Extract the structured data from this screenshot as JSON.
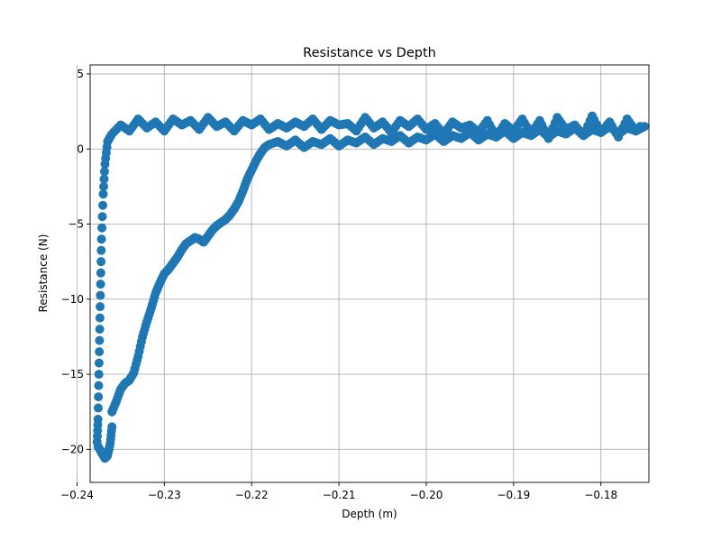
{
  "chart_data": {
    "type": "scatter",
    "title": "Resistance vs Depth",
    "xlabel": "Depth (m)",
    "ylabel": "Resistance (N)",
    "xlim": [
      -0.2385,
      -0.1745
    ],
    "ylim": [
      -22.2,
      5.6
    ],
    "xticks": [
      -0.24,
      -0.23,
      -0.22,
      -0.21,
      -0.2,
      -0.19,
      -0.18
    ],
    "xtick_labels": [
      "−0.24",
      "−0.23",
      "−0.22",
      "−0.21",
      "−0.20",
      "−0.19",
      "−0.18"
    ],
    "yticks": [
      -20,
      -15,
      -10,
      -5,
      0,
      5
    ],
    "ytick_labels": [
      "−20",
      "−15",
      "−10",
      "−5",
      "0",
      "5"
    ],
    "grid": true,
    "legend": "none",
    "marker_color": "#1f77b4",
    "series": [
      {
        "segments": [
          {
            "description_role": "approach",
            "points": [
              [
                -0.175,
                1.5
              ],
              [
                -0.176,
                1.2
              ],
              [
                -0.177,
                2.0
              ],
              [
                -0.178,
                0.8
              ],
              [
                -0.179,
                1.8
              ],
              [
                -0.18,
                1.1
              ],
              [
                -0.181,
                2.2
              ],
              [
                -0.182,
                0.9
              ],
              [
                -0.183,
                1.6
              ],
              [
                -0.184,
                1.3
              ],
              [
                -0.185,
                2.1
              ],
              [
                -0.186,
                0.7
              ],
              [
                -0.187,
                1.9
              ],
              [
                -0.188,
                1.0
              ],
              [
                -0.189,
                2.0
              ],
              [
                -0.19,
                1.2
              ],
              [
                -0.191,
                1.7
              ],
              [
                -0.192,
                0.8
              ],
              [
                -0.193,
                1.9
              ],
              [
                -0.194,
                1.1
              ],
              [
                -0.195,
                1.6
              ],
              [
                -0.196,
                1.4
              ],
              [
                -0.197,
                1.8
              ],
              [
                -0.198,
                1.0
              ],
              [
                -0.199,
                1.7
              ],
              [
                -0.2,
                1.3
              ],
              [
                -0.201,
                2.0
              ],
              [
                -0.202,
                1.5
              ],
              [
                -0.203,
                1.9
              ],
              [
                -0.204,
                1.1
              ],
              [
                -0.205,
                1.8
              ],
              [
                -0.206,
                1.4
              ],
              [
                -0.207,
                2.1
              ],
              [
                -0.208,
                1.2
              ],
              [
                -0.209,
                1.7
              ],
              [
                -0.21,
                1.6
              ],
              [
                -0.211,
                1.9
              ],
              [
                -0.212,
                1.3
              ],
              [
                -0.213,
                2.0
              ],
              [
                -0.214,
                1.5
              ],
              [
                -0.215,
                1.8
              ],
              [
                -0.216,
                1.4
              ],
              [
                -0.217,
                1.7
              ],
              [
                -0.218,
                1.3
              ],
              [
                -0.219,
                2.0
              ],
              [
                -0.22,
                1.6
              ],
              [
                -0.221,
                1.9
              ],
              [
                -0.222,
                1.2
              ],
              [
                -0.223,
                1.8
              ],
              [
                -0.224,
                1.5
              ],
              [
                -0.225,
                2.1
              ],
              [
                -0.226,
                1.3
              ],
              [
                -0.227,
                1.9
              ],
              [
                -0.228,
                1.6
              ],
              [
                -0.229,
                2.0
              ],
              [
                -0.23,
                1.2
              ],
              [
                -0.231,
                1.8
              ],
              [
                -0.232,
                1.4
              ],
              [
                -0.233,
                2.0
              ],
              [
                -0.234,
                1.2
              ],
              [
                -0.235,
                1.6
              ],
              [
                -0.236,
                1.0
              ],
              [
                -0.2365,
                0.5
              ],
              [
                -0.2368,
                -1.0
              ],
              [
                -0.237,
                -3.0
              ],
              [
                -0.2372,
                -6.0
              ],
              [
                -0.2373,
                -9.0
              ],
              [
                -0.2374,
                -12.0
              ],
              [
                -0.2375,
                -15.0
              ],
              [
                -0.2376,
                -18.0
              ],
              [
                -0.2377,
                -19.5
              ]
            ]
          },
          {
            "description_role": "bottom",
            "points": [
              [
                -0.2376,
                -19.8
              ],
              [
                -0.2372,
                -20.2
              ],
              [
                -0.2368,
                -20.6
              ],
              [
                -0.2365,
                -20.4
              ],
              [
                -0.2362,
                -19.6
              ],
              [
                -0.236,
                -18.5
              ]
            ]
          },
          {
            "description_role": "return",
            "points": [
              [
                -0.236,
                -17.5
              ],
              [
                -0.2355,
                -16.8
              ],
              [
                -0.235,
                -16.0
              ],
              [
                -0.2345,
                -15.6
              ],
              [
                -0.234,
                -15.4
              ],
              [
                -0.2335,
                -14.9
              ],
              [
                -0.233,
                -13.8
              ],
              [
                -0.2325,
                -12.5
              ],
              [
                -0.232,
                -11.5
              ],
              [
                -0.2315,
                -10.6
              ],
              [
                -0.231,
                -9.6
              ],
              [
                -0.2305,
                -8.9
              ],
              [
                -0.23,
                -8.3
              ],
              [
                -0.2295,
                -8.0
              ],
              [
                -0.229,
                -7.6
              ],
              [
                -0.2285,
                -7.2
              ],
              [
                -0.228,
                -6.7
              ],
              [
                -0.2275,
                -6.3
              ],
              [
                -0.227,
                -6.1
              ],
              [
                -0.2265,
                -5.9
              ],
              [
                -0.226,
                -6.0
              ],
              [
                -0.2255,
                -6.2
              ],
              [
                -0.225,
                -5.8
              ],
              [
                -0.2245,
                -5.4
              ],
              [
                -0.224,
                -5.1
              ],
              [
                -0.2235,
                -4.9
              ],
              [
                -0.223,
                -4.7
              ],
              [
                -0.2225,
                -4.4
              ],
              [
                -0.222,
                -4.0
              ],
              [
                -0.2215,
                -3.5
              ],
              [
                -0.221,
                -2.8
              ],
              [
                -0.2205,
                -2.0
              ],
              [
                -0.22,
                -1.4
              ],
              [
                -0.2195,
                -0.8
              ],
              [
                -0.219,
                -0.3
              ],
              [
                -0.2185,
                0.1
              ],
              [
                -0.218,
                0.3
              ],
              [
                -0.217,
                0.5
              ],
              [
                -0.216,
                0.2
              ],
              [
                -0.215,
                0.6
              ],
              [
                -0.214,
                0.1
              ],
              [
                -0.213,
                0.5
              ],
              [
                -0.212,
                0.3
              ],
              [
                -0.211,
                0.7
              ],
              [
                -0.21,
                0.2
              ],
              [
                -0.209,
                0.6
              ],
              [
                -0.208,
                0.4
              ],
              [
                -0.207,
                0.8
              ],
              [
                -0.206,
                0.3
              ],
              [
                -0.205,
                0.7
              ],
              [
                -0.204,
                0.5
              ],
              [
                -0.203,
                0.9
              ],
              [
                -0.202,
                0.4
              ],
              [
                -0.201,
                0.8
              ],
              [
                -0.2,
                0.6
              ],
              [
                -0.199,
                1.0
              ],
              [
                -0.198,
                0.5
              ],
              [
                -0.197,
                0.9
              ],
              [
                -0.196,
                0.7
              ],
              [
                -0.195,
                1.1
              ],
              [
                -0.194,
                0.6
              ],
              [
                -0.193,
                1.0
              ],
              [
                -0.192,
                0.8
              ],
              [
                -0.191,
                1.2
              ],
              [
                -0.19,
                0.7
              ],
              [
                -0.189,
                1.1
              ],
              [
                -0.188,
                0.9
              ],
              [
                -0.187,
                1.3
              ],
              [
                -0.186,
                0.8
              ],
              [
                -0.185,
                1.2
              ],
              [
                -0.184,
                1.0
              ],
              [
                -0.183,
                1.4
              ],
              [
                -0.182,
                0.9
              ],
              [
                -0.181,
                1.3
              ],
              [
                -0.18,
                1.1
              ],
              [
                -0.179,
                1.5
              ],
              [
                -0.178,
                1.0
              ],
              [
                -0.177,
                1.4
              ],
              [
                -0.176,
                1.2
              ],
              [
                -0.1755,
                1.5
              ]
            ]
          }
        ]
      }
    ]
  }
}
